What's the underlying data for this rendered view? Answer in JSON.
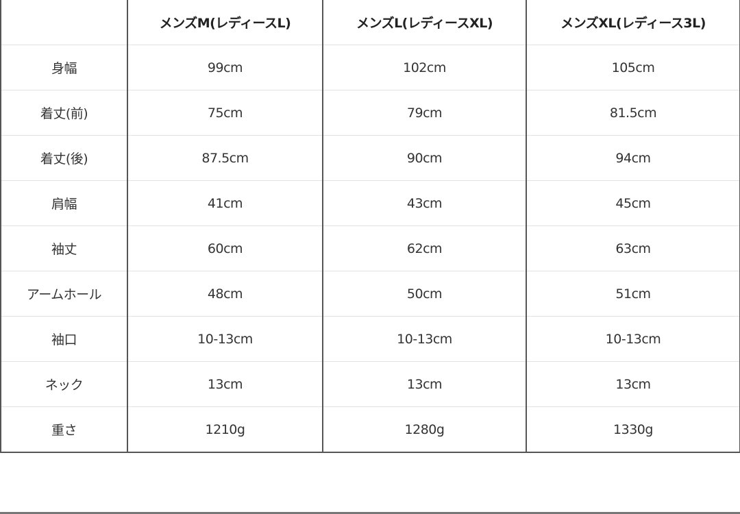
{
  "table": {
    "headers": [
      "",
      "メンズM(レディースL)",
      "メンズL(レディースXL)",
      "メンズXL(レディース3L)"
    ],
    "rows": [
      {
        "label": "身幅",
        "values": [
          "99cm",
          "102cm",
          "105cm"
        ]
      },
      {
        "label": "着丈(前)",
        "values": [
          "75cm",
          "79cm",
          "81.5cm"
        ]
      },
      {
        "label": "着丈(後)",
        "values": [
          "87.5cm",
          "90cm",
          "94cm"
        ]
      },
      {
        "label": "肩幅",
        "values": [
          "41cm",
          "43cm",
          "45cm"
        ]
      },
      {
        "label": "袖丈",
        "values": [
          "60cm",
          "62cm",
          "63cm"
        ]
      },
      {
        "label": "アームホール",
        "values": [
          "48cm",
          "50cm",
          "51cm"
        ]
      },
      {
        "label": "袖口",
        "values": [
          "10-13cm",
          "10-13cm",
          "10-13cm"
        ]
      },
      {
        "label": "ネック",
        "values": [
          "13cm",
          "13cm",
          "13cm"
        ]
      },
      {
        "label": "重さ",
        "values": [
          "1210g",
          "1280g",
          "1330g"
        ]
      }
    ]
  }
}
